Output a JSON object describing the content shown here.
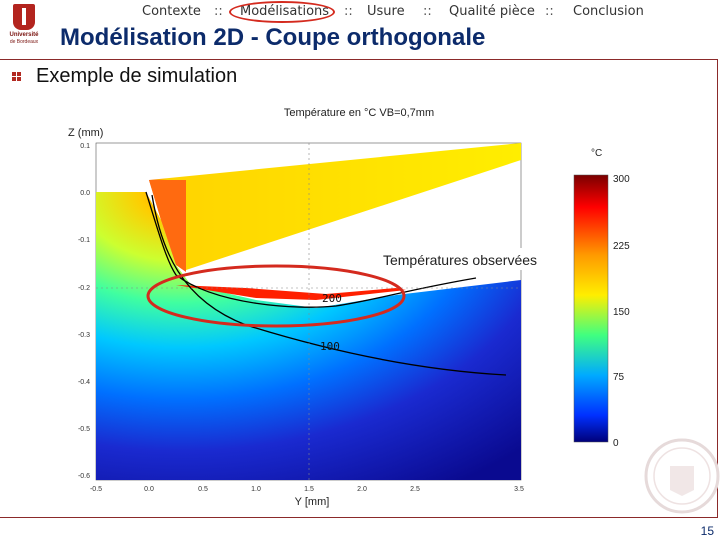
{
  "nav": {
    "items": [
      "Contexte",
      "Modélisations",
      "Usure",
      "Qualité pièce",
      "Conclusion"
    ],
    "separator": "::",
    "active": "Modélisations"
  },
  "logo": {
    "line1": "Université",
    "line2": "de Bordeaux"
  },
  "slide": {
    "title": "Modélisation 2D - Coupe orthogonale",
    "bullet": "Exemple de simulation",
    "page_number": "15"
  },
  "colors": {
    "title": "#0c2b6b",
    "accent": "#b3241e",
    "highlight_ring": "#d42a1e"
  },
  "chart_data": {
    "type": "heatmap",
    "title": "Température en °C VB=0,7mm",
    "xlabel": "Y [mm]",
    "ylabel": "Z (mm)",
    "x_tick_labels": [
      "-0.5",
      "0.0",
      "0.5",
      "1.0",
      "1.5",
      "2.0",
      "2.5",
      "3.5"
    ],
    "y_tick_labels": [
      "0.1",
      "0.0",
      "-0.1",
      "-0.2",
      "-0.3",
      "-0.4",
      "-0.5",
      "-0.6"
    ],
    "colorbar": {
      "unit": "°C",
      "min": 0,
      "max": 300,
      "ticks": [
        300,
        225,
        150,
        75,
        0
      ]
    },
    "isotherms": [
      {
        "label": "200"
      },
      {
        "label": "100"
      }
    ],
    "annotation": "Températures observées"
  }
}
